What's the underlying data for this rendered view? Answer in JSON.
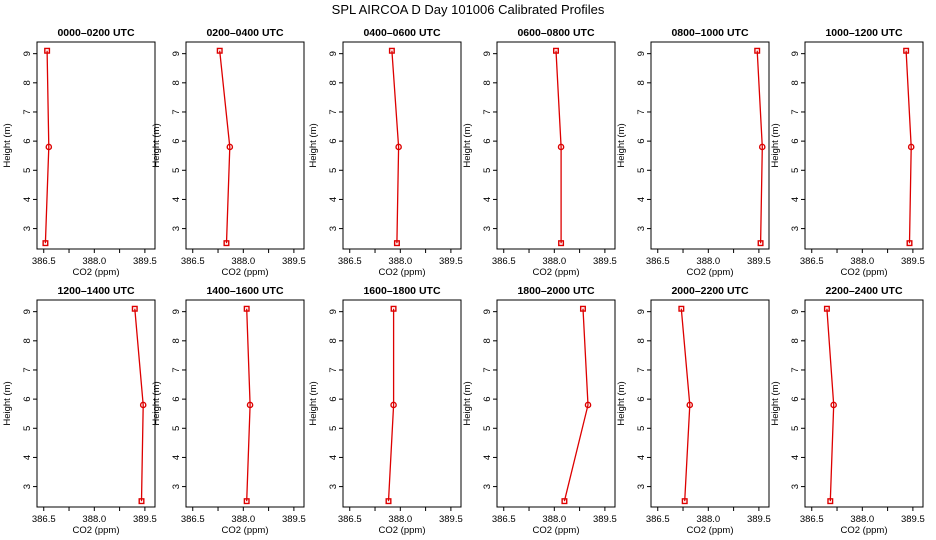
{
  "title": "SPL AIRCOA D  Day 101006  Calibrated Profiles",
  "colors": {
    "line": "#dd0000",
    "frame": "#000000"
  },
  "chart_data": [
    {
      "type": "line",
      "title": "0000–0200 UTC",
      "xlabel": "CO2 (ppm)",
      "ylabel": "Height (m)",
      "xlim": [
        386.3,
        389.8
      ],
      "ylim": [
        2.3,
        9.4
      ],
      "xticks": [
        "386.5",
        "388.0",
        "389.5"
      ],
      "yticks": [
        "3",
        "4",
        "5",
        "6",
        "7",
        "8",
        "9"
      ],
      "x": [
        386.55,
        386.65,
        386.6
      ],
      "y": [
        2.5,
        5.8,
        9.1
      ]
    },
    {
      "type": "line",
      "title": "0200–0400 UTC",
      "xlabel": "CO2 (ppm)",
      "ylabel": "Height (m)",
      "xlim": [
        386.3,
        389.8
      ],
      "ylim": [
        2.3,
        9.4
      ],
      "xticks": [
        "386.5",
        "388.0",
        "389.5"
      ],
      "yticks": [
        "3",
        "4",
        "5",
        "6",
        "7",
        "8",
        "9"
      ],
      "x": [
        387.5,
        387.6,
        387.3
      ],
      "y": [
        2.5,
        5.8,
        9.1
      ]
    },
    {
      "type": "line",
      "title": "0400–0600 UTC",
      "xlabel": "CO2 (ppm)",
      "ylabel": "Height (m)",
      "xlim": [
        386.3,
        389.8
      ],
      "ylim": [
        2.3,
        9.4
      ],
      "xticks": [
        "386.5",
        "388.0",
        "389.5"
      ],
      "yticks": [
        "3",
        "4",
        "5",
        "6",
        "7",
        "8",
        "9"
      ],
      "x": [
        387.9,
        387.95,
        387.75
      ],
      "y": [
        2.5,
        5.8,
        9.1
      ]
    },
    {
      "type": "line",
      "title": "0600–0800 UTC",
      "xlabel": "CO2 (ppm)",
      "ylabel": "Height (m)",
      "xlim": [
        386.3,
        389.8
      ],
      "ylim": [
        2.3,
        9.4
      ],
      "xticks": [
        "386.5",
        "388.0",
        "389.5"
      ],
      "yticks": [
        "3",
        "4",
        "5",
        "6",
        "7",
        "8",
        "9"
      ],
      "x": [
        388.2,
        388.2,
        388.05
      ],
      "y": [
        2.5,
        5.8,
        9.1
      ]
    },
    {
      "type": "line",
      "title": "0800–1000 UTC",
      "xlabel": "CO2 (ppm)",
      "ylabel": "Height (m)",
      "xlim": [
        386.3,
        389.8
      ],
      "ylim": [
        2.3,
        9.4
      ],
      "xticks": [
        "386.5",
        "388.0",
        "389.5"
      ],
      "yticks": [
        "3",
        "4",
        "5",
        "6",
        "7",
        "8",
        "9"
      ],
      "x": [
        389.55,
        389.6,
        389.45
      ],
      "y": [
        2.5,
        5.8,
        9.1
      ]
    },
    {
      "type": "line",
      "title": "1000–1200 UTC",
      "xlabel": "CO2 (ppm)",
      "ylabel": "Height (m)",
      "xlim": [
        386.3,
        389.8
      ],
      "ylim": [
        2.3,
        9.4
      ],
      "xticks": [
        "386.5",
        "388.0",
        "389.5"
      ],
      "yticks": [
        "3",
        "4",
        "5",
        "6",
        "7",
        "8",
        "9"
      ],
      "x": [
        389.4,
        389.45,
        389.3
      ],
      "y": [
        2.5,
        5.8,
        9.1
      ]
    },
    {
      "type": "line",
      "title": "1200–1400 UTC",
      "xlabel": "CO2 (ppm)",
      "ylabel": "Height (m)",
      "xlim": [
        386.3,
        389.8
      ],
      "ylim": [
        2.3,
        9.4
      ],
      "xticks": [
        "386.5",
        "388.0",
        "389.5"
      ],
      "yticks": [
        "3",
        "4",
        "5",
        "6",
        "7",
        "8",
        "9"
      ],
      "x": [
        389.4,
        389.45,
        389.2
      ],
      "y": [
        2.5,
        5.8,
        9.1
      ]
    },
    {
      "type": "line",
      "title": "1400–1600 UTC",
      "xlabel": "CO2 (ppm)",
      "ylabel": "Height (m)",
      "xlim": [
        386.3,
        389.8
      ],
      "ylim": [
        2.3,
        9.4
      ],
      "xticks": [
        "386.5",
        "388.0",
        "389.5"
      ],
      "yticks": [
        "3",
        "4",
        "5",
        "6",
        "7",
        "8",
        "9"
      ],
      "x": [
        388.1,
        388.2,
        388.1
      ],
      "y": [
        2.5,
        5.8,
        9.1
      ]
    },
    {
      "type": "line",
      "title": "1600–1800 UTC",
      "xlabel": "CO2 (ppm)",
      "ylabel": "Height (m)",
      "xlim": [
        386.3,
        389.8
      ],
      "ylim": [
        2.3,
        9.4
      ],
      "xticks": [
        "386.5",
        "388.0",
        "389.5"
      ],
      "yticks": [
        "3",
        "4",
        "5",
        "6",
        "7",
        "8",
        "9"
      ],
      "x": [
        387.65,
        387.8,
        387.8
      ],
      "y": [
        2.5,
        5.8,
        9.1
      ]
    },
    {
      "type": "line",
      "title": "1800–2000 UTC",
      "xlabel": "CO2 (ppm)",
      "ylabel": "Height (m)",
      "xlim": [
        386.3,
        389.8
      ],
      "ylim": [
        2.3,
        9.4
      ],
      "xticks": [
        "386.5",
        "388.0",
        "389.5"
      ],
      "yticks": [
        "3",
        "4",
        "5",
        "6",
        "7",
        "8",
        "9"
      ],
      "x": [
        388.3,
        389.0,
        388.85
      ],
      "y": [
        2.5,
        5.8,
        9.1
      ]
    },
    {
      "type": "line",
      "title": "2000–2200 UTC",
      "xlabel": "CO2 (ppm)",
      "ylabel": "Height (m)",
      "xlim": [
        386.3,
        389.8
      ],
      "ylim": [
        2.3,
        9.4
      ],
      "xticks": [
        "386.5",
        "388.0",
        "389.5"
      ],
      "yticks": [
        "3",
        "4",
        "5",
        "6",
        "7",
        "8",
        "9"
      ],
      "x": [
        387.3,
        387.45,
        387.2
      ],
      "y": [
        2.5,
        5.8,
        9.1
      ]
    },
    {
      "type": "line",
      "title": "2200–2400 UTC",
      "xlabel": "CO2 (ppm)",
      "ylabel": "Height (m)",
      "xlim": [
        386.3,
        389.8
      ],
      "ylim": [
        2.3,
        9.4
      ],
      "xticks": [
        "386.5",
        "388.0",
        "389.5"
      ],
      "yticks": [
        "3",
        "4",
        "5",
        "6",
        "7",
        "8",
        "9"
      ],
      "x": [
        387.05,
        387.15,
        386.95
      ],
      "y": [
        2.5,
        5.8,
        9.1
      ]
    }
  ]
}
